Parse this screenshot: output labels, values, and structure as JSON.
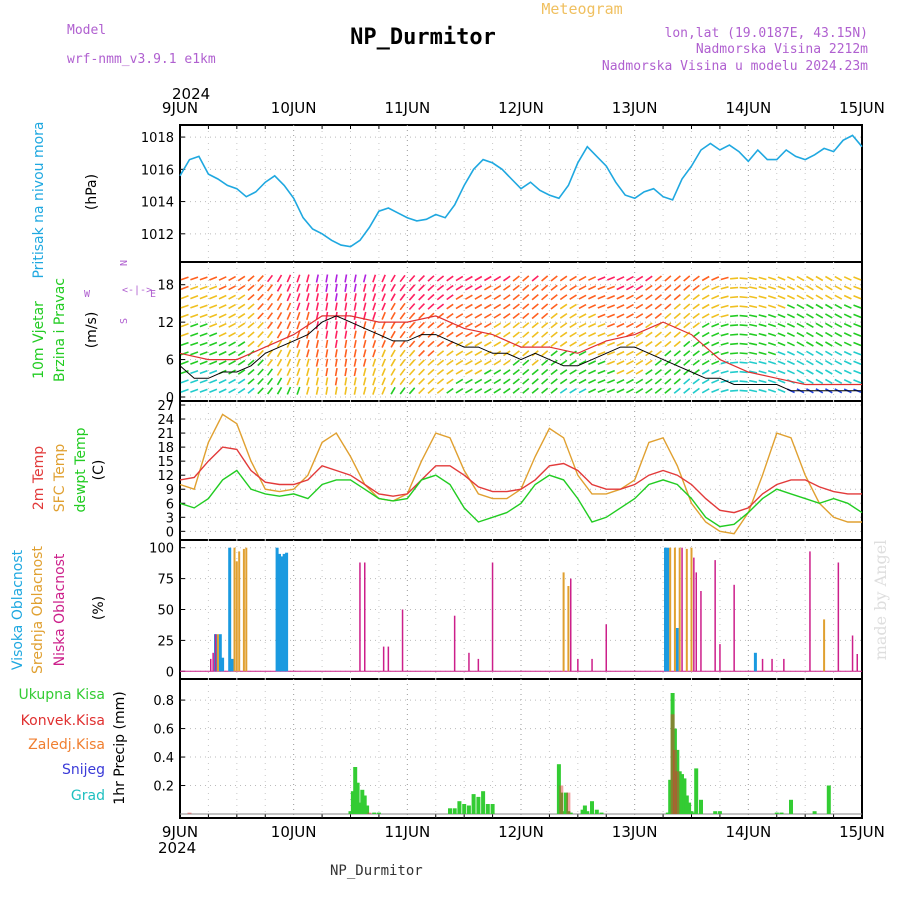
{
  "header": {
    "model_label": "Model",
    "model_name": "wrf-nmm_v3.9.1  e1km",
    "title": "NP_Durmitor",
    "subtitle": "Meteogram",
    "lonlat": "lon,lat (19.0187E, 43.15N)",
    "elevation": "Nadmorska Visina 2212m",
    "model_elevation": "Nadmorska Visina u modelu 2024.23m",
    "footer_station": "NP_Durmitor",
    "watermark": "made by Angel"
  },
  "time_axis": {
    "year": "2024",
    "day_labels": [
      "9JUN",
      "10JUN",
      "11JUN",
      "12JUN",
      "13JUN",
      "14JUN",
      "15JUN"
    ],
    "range_hours": [
      0,
      144
    ]
  },
  "colors": {
    "pressure": "#1fa8e0",
    "wind_speed": "#000000",
    "wind_gust": "#e03030",
    "temp_2m": "#e23a3a",
    "temp_sfc": "#e0a030",
    "temp_dew": "#22cc22",
    "cloud_high": "#1a9ae0",
    "cloud_mid": "#e0a030",
    "cloud_low": "#cc1f8a",
    "precip_total": "#33cc33",
    "precip_conv": "#e03030",
    "precip_frozen": "#f07f30",
    "precip_snow": "#3a3ad8",
    "precip_graupel": "#1fc0c0"
  },
  "panels": {
    "pressure": {
      "title": "Pritisak na nivou mora",
      "unit": "(hPa)",
      "ylim": [
        1010.5,
        1018.5
      ],
      "ticks": [
        "1012",
        "1014",
        "1016",
        "1018"
      ]
    },
    "wind": {
      "title_line1": "10m Vjetar",
      "title_line2": "Brzina i Pravac",
      "unit": "(m/s)",
      "compass_n": "N",
      "compass_w": "W",
      "compass_e": "E",
      "compass_s": "S",
      "ylim": [
        0,
        21
      ],
      "ticks": [
        "0",
        "6",
        "12",
        "18"
      ]
    },
    "temp": {
      "title_2m": "2m Temp",
      "title_sfc": "SFC Temp",
      "title_dew": "dewpt Temp",
      "unit": "(C)",
      "ylim": [
        -1,
        27
      ],
      "ticks": [
        "0",
        "3",
        "6",
        "9",
        "12",
        "15",
        "18",
        "21",
        "24",
        "27"
      ]
    },
    "cloud": {
      "title_high": "Visoka Oblacnost",
      "title_mid": "Srednja Oblacnost",
      "title_low": "Niska Oblacnost",
      "unit": "(%)",
      "ylim": [
        -3,
        103
      ],
      "ticks": [
        "0",
        "25",
        "50",
        "75",
        "100"
      ]
    },
    "precip": {
      "legend": [
        "Ukupna Kisa",
        "Konvek.Kisa",
        "Zaledj.Kisa",
        "Snijeg",
        "Grad"
      ],
      "ylabel": "1hr Precip (mm)",
      "ylim": [
        0,
        0.92
      ],
      "ticks": [
        "0.2",
        "0.4",
        "0.6",
        "0.8"
      ]
    }
  },
  "chart_data": [
    {
      "type": "line",
      "title": "Pritisak na nivou mora",
      "ylabel": "(hPa)",
      "ylim": [
        1010.5,
        1018.5
      ],
      "x_unit": "hours from 9JUN 00 UTC",
      "series": [
        {
          "name": "Pritisak na nivou mora",
          "x": [
            0,
            2,
            4,
            6,
            8,
            10,
            12,
            14,
            16,
            18,
            20,
            22,
            24,
            26,
            28,
            30,
            32,
            34,
            36,
            38,
            40,
            42,
            44,
            46,
            48,
            50,
            52,
            54,
            56,
            58,
            60,
            62,
            64,
            66,
            68,
            70,
            72,
            74,
            76,
            78,
            80,
            82,
            84,
            86,
            88,
            90,
            92,
            94,
            96,
            98,
            100,
            102,
            104,
            106,
            108,
            110,
            112,
            114,
            116,
            118,
            120,
            122,
            124,
            126,
            128,
            130,
            132,
            134,
            136,
            138,
            140,
            142,
            144
          ],
          "values": [
            1015.6,
            1016.6,
            1016.8,
            1015.7,
            1015.4,
            1015.0,
            1014.8,
            1014.3,
            1014.6,
            1015.2,
            1015.6,
            1015.0,
            1014.2,
            1013.0,
            1012.3,
            1012.0,
            1011.6,
            1011.3,
            1011.2,
            1011.6,
            1012.4,
            1013.4,
            1013.6,
            1013.3,
            1013.0,
            1012.8,
            1012.9,
            1013.2,
            1013.0,
            1013.8,
            1015.0,
            1016.0,
            1016.6,
            1016.4,
            1016.0,
            1015.4,
            1014.8,
            1015.2,
            1014.7,
            1014.4,
            1014.2,
            1015.0,
            1016.4,
            1017.4,
            1016.8,
            1016.2,
            1015.2,
            1014.4,
            1014.2,
            1014.6,
            1014.8,
            1014.3,
            1014.1,
            1015.4,
            1016.2,
            1017.2,
            1017.6,
            1017.2,
            1017.5,
            1017.1,
            1016.5,
            1017.2,
            1016.6,
            1016.6,
            1017.2,
            1016.8,
            1016.6,
            1016.9,
            1017.3,
            1017.1,
            1017.8,
            1018.1,
            1017.4
          ]
        }
      ]
    },
    {
      "type": "line",
      "title": "10m Vjetar Brzina i Pravac",
      "ylabel": "(m/s)",
      "ylim": [
        0,
        21
      ],
      "x_unit": "hours from 9JUN 00 UTC",
      "series": [
        {
          "name": "speed",
          "x": [
            0,
            3,
            6,
            9,
            12,
            15,
            18,
            21,
            24,
            27,
            30,
            33,
            36,
            39,
            42,
            45,
            48,
            51,
            54,
            57,
            60,
            63,
            66,
            69,
            72,
            75,
            78,
            81,
            84,
            87,
            90,
            93,
            96,
            99,
            102,
            105,
            108,
            111,
            114,
            117,
            120,
            123,
            126,
            129,
            132,
            135,
            138,
            141,
            144
          ],
          "values": [
            5,
            3,
            3,
            4,
            4,
            5,
            7,
            8,
            9,
            10,
            12,
            13,
            12,
            11,
            10,
            9,
            9,
            10,
            10,
            9,
            8,
            8,
            7,
            7,
            6,
            7,
            6,
            5,
            5,
            6,
            7,
            8,
            8,
            7,
            6,
            5,
            4,
            3,
            3,
            2,
            2,
            2,
            2,
            1,
            1,
            1,
            1,
            1,
            1
          ]
        },
        {
          "name": "gust",
          "x": [
            0,
            6,
            12,
            18,
            24,
            30,
            36,
            42,
            48,
            54,
            60,
            66,
            72,
            78,
            84,
            90,
            96,
            102,
            108,
            114,
            120,
            126,
            132,
            138,
            144
          ],
          "values": [
            7,
            6,
            6,
            8,
            10,
            13,
            13,
            12,
            12,
            13,
            11,
            10,
            8,
            8,
            7,
            9,
            10,
            12,
            10,
            6,
            4,
            3,
            2,
            2,
            2
          ]
        }
      ],
      "barbs": {
        "note": "wind direction arrows (degrees, meteorological 'from')",
        "x": [
          0,
          6,
          12,
          18,
          24,
          30,
          36,
          42,
          48,
          54,
          60,
          66,
          72,
          78,
          84,
          90,
          96,
          102,
          108,
          114,
          120,
          126,
          132,
          138,
          144
        ],
        "dir": [
          250,
          250,
          240,
          220,
          200,
          190,
          190,
          200,
          220,
          230,
          240,
          240,
          230,
          230,
          240,
          250,
          240,
          230,
          230,
          250,
          280,
          290,
          300,
          300,
          290
        ]
      }
    },
    {
      "type": "line",
      "title": "2m Temp / SFC Temp / dewpt Temp",
      "ylabel": "(C)",
      "ylim": [
        -1,
        27
      ],
      "x_unit": "hours from 9JUN 00 UTC",
      "series": [
        {
          "name": "2m Temp",
          "x": [
            0,
            3,
            6,
            9,
            12,
            15,
            18,
            21,
            24,
            27,
            30,
            33,
            36,
            39,
            42,
            45,
            48,
            51,
            54,
            57,
            60,
            63,
            66,
            69,
            72,
            75,
            78,
            81,
            84,
            87,
            90,
            93,
            96,
            99,
            102,
            105,
            108,
            111,
            114,
            117,
            120,
            123,
            126,
            129,
            132,
            135,
            138,
            141,
            144
          ],
          "values": [
            11,
            11.5,
            15,
            18,
            17.5,
            13,
            10.5,
            10,
            10,
            11,
            14,
            13,
            12,
            10,
            8,
            7.5,
            8,
            11,
            14,
            14,
            12,
            9.5,
            8.5,
            8.5,
            9,
            11,
            14,
            14.5,
            13,
            10,
            9,
            9,
            10,
            12,
            13,
            12,
            10,
            7,
            4.5,
            4,
            5,
            8,
            10,
            11,
            11,
            9.5,
            8.5,
            8,
            8
          ]
        },
        {
          "name": "SFC Temp",
          "x": [
            0,
            3,
            6,
            9,
            12,
            15,
            18,
            21,
            24,
            27,
            30,
            33,
            36,
            39,
            42,
            45,
            48,
            51,
            54,
            57,
            60,
            63,
            66,
            69,
            72,
            75,
            78,
            81,
            84,
            87,
            90,
            93,
            96,
            99,
            102,
            105,
            108,
            111,
            114,
            117,
            120,
            123,
            126,
            129,
            132,
            135,
            138,
            141,
            144
          ],
          "values": [
            10,
            9,
            19,
            25,
            23,
            15,
            9,
            8.5,
            9,
            12,
            19,
            21,
            16,
            10,
            7,
            6.5,
            8,
            15,
            21,
            20,
            13,
            8,
            7,
            7,
            9,
            16,
            22,
            20,
            12,
            8,
            8,
            9,
            11,
            19,
            20,
            14,
            6,
            2,
            0,
            -0.5,
            4,
            12,
            21,
            20,
            12,
            6,
            3,
            2,
            2
          ]
        },
        {
          "name": "dewpt Temp",
          "x": [
            0,
            3,
            6,
            9,
            12,
            15,
            18,
            21,
            24,
            27,
            30,
            33,
            36,
            39,
            42,
            45,
            48,
            51,
            54,
            57,
            60,
            63,
            66,
            69,
            72,
            75,
            78,
            81,
            84,
            87,
            90,
            93,
            96,
            99,
            102,
            105,
            108,
            111,
            114,
            117,
            120,
            123,
            126,
            129,
            132,
            135,
            138,
            141,
            144
          ],
          "values": [
            6,
            5,
            7,
            11,
            13,
            9,
            8,
            7.5,
            8,
            7,
            10,
            11,
            11,
            9,
            7,
            6.5,
            7,
            11,
            12,
            10,
            5,
            2,
            3,
            4,
            6,
            10,
            12,
            11,
            7,
            2,
            3,
            5,
            7,
            10,
            11,
            10,
            7,
            3,
            1,
            1.5,
            4,
            7,
            9,
            8,
            7,
            6,
            7,
            6,
            4
          ]
        }
      ]
    },
    {
      "type": "bar",
      "title": "Visoka / Srednja / Niska Oblacnost",
      "ylabel": "(%)",
      "ylim": [
        -3,
        103
      ],
      "x_unit": "hours from 9JUN 00 UTC",
      "series": [
        {
          "name": "Visoka Oblacnost",
          "x": [
            7.5,
            8.5,
            9,
            10.5,
            11,
            20.5,
            21,
            21.5,
            22,
            22.5,
            102.5,
            103,
            105,
            121.5
          ],
          "values": [
            30,
            30,
            11,
            100,
            10,
            100,
            95,
            93,
            95,
            96,
            100,
            100,
            35,
            15
          ]
        },
        {
          "name": "Srednja Oblacnost",
          "x": [
            8,
            11.5,
            12,
            12.5,
            13.5,
            14,
            81,
            82,
            103.5,
            104.5,
            105.5,
            107,
            108,
            136
          ],
          "values": [
            30,
            100,
            89,
            97,
            99,
            100,
            80,
            69,
            100,
            100,
            100,
            99,
            100,
            42
          ]
        },
        {
          "name": "Niska Oblacnost",
          "x": [
            6.5,
            7,
            7.5,
            38,
            39,
            43,
            44,
            47,
            58,
            61,
            63,
            66,
            82.5,
            84,
            87,
            90,
            106,
            108.5,
            109,
            110,
            113,
            114,
            117,
            123,
            125,
            127.5,
            133,
            139,
            142,
            143
          ],
          "values": [
            10,
            15,
            30,
            88,
            88,
            20,
            20,
            50,
            45,
            15,
            10,
            88,
            75,
            10,
            10,
            38,
            100,
            92,
            80,
            65,
            90,
            22,
            70,
            10,
            10,
            10,
            97,
            88,
            29,
            14
          ]
        }
      ]
    },
    {
      "type": "bar",
      "title": "1hr Precip",
      "ylabel": "1hr Precip (mm)",
      "ylim": [
        0,
        0.92
      ],
      "x_unit": "hours from 9JUN 00 UTC",
      "series": [
        {
          "name": "Ukupna Kisa",
          "x": [
            36,
            36.5,
            37,
            37.5,
            38,
            38.5,
            39,
            39.5,
            41,
            42,
            57,
            58,
            59,
            60,
            61,
            62,
            63,
            64,
            65,
            66,
            80,
            80.5,
            81,
            81.5,
            82,
            82.5,
            85,
            85.5,
            86,
            87,
            88,
            89,
            103,
            103.5,
            104,
            104.5,
            105,
            105.5,
            106,
            106.5,
            107,
            107.5,
            108,
            108.5,
            109,
            110,
            113,
            114,
            126,
            127,
            129,
            134,
            137
          ],
          "values": [
            0.02,
            0.16,
            0.33,
            0.22,
            0.08,
            0.17,
            0.13,
            0.06,
            0.01,
            0.01,
            0.04,
            0.04,
            0.09,
            0.07,
            0.06,
            0.14,
            0.12,
            0.16,
            0.07,
            0.07,
            0.35,
            0.15,
            0.02,
            0.15,
            0.02,
            0.01,
            0.03,
            0.06,
            0.02,
            0.09,
            0.03,
            0.01,
            0.01,
            0.24,
            0.85,
            0.6,
            0.45,
            0.3,
            0.28,
            0.25,
            0.13,
            0.08,
            0.02,
            0.01,
            0.32,
            0.1,
            0.02,
            0.02,
            0.01,
            0.01,
            0.1,
            0.02,
            0.2
          ]
        },
        {
          "name": "Konvek.Kisa",
          "x": [
            2,
            40,
            80.5,
            82,
            104,
            104.5,
            105
          ],
          "values": [
            0.01,
            0.01,
            0.2,
            0.15,
            0.7,
            0.45,
            0.3
          ]
        }
      ]
    }
  ]
}
